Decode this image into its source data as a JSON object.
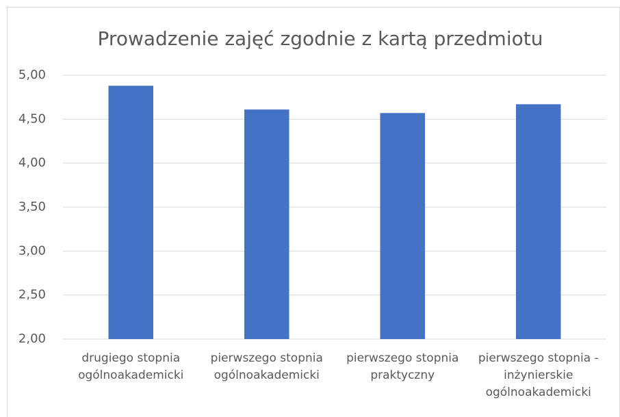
{
  "chart_data": {
    "type": "bar",
    "title": "Prowadzenie zajęć zgodnie z kartą przedmiotu",
    "categories": [
      "drugiego stopnia ogólnoakademicki",
      "pierwszego stopnia ogólnoakademicki",
      "pierwszego stopnia praktyczny",
      "pierwszego stopnia - inżynierskie ogólnoakademicki"
    ],
    "values": [
      4.88,
      4.61,
      4.57,
      4.67
    ],
    "color": "#4472c4",
    "ylim": [
      2,
      5
    ],
    "yticks": [
      {
        "value": 2,
        "label": "2,00"
      },
      {
        "value": 2.5,
        "label": "2,50"
      },
      {
        "value": 3,
        "label": "3,00"
      },
      {
        "value": 3.5,
        "label": "3,50"
      },
      {
        "value": 4,
        "label": "4,00"
      },
      {
        "value": 4.5,
        "label": "4,50"
      },
      {
        "value": 5,
        "label": "5,00"
      }
    ],
    "grid": true
  }
}
